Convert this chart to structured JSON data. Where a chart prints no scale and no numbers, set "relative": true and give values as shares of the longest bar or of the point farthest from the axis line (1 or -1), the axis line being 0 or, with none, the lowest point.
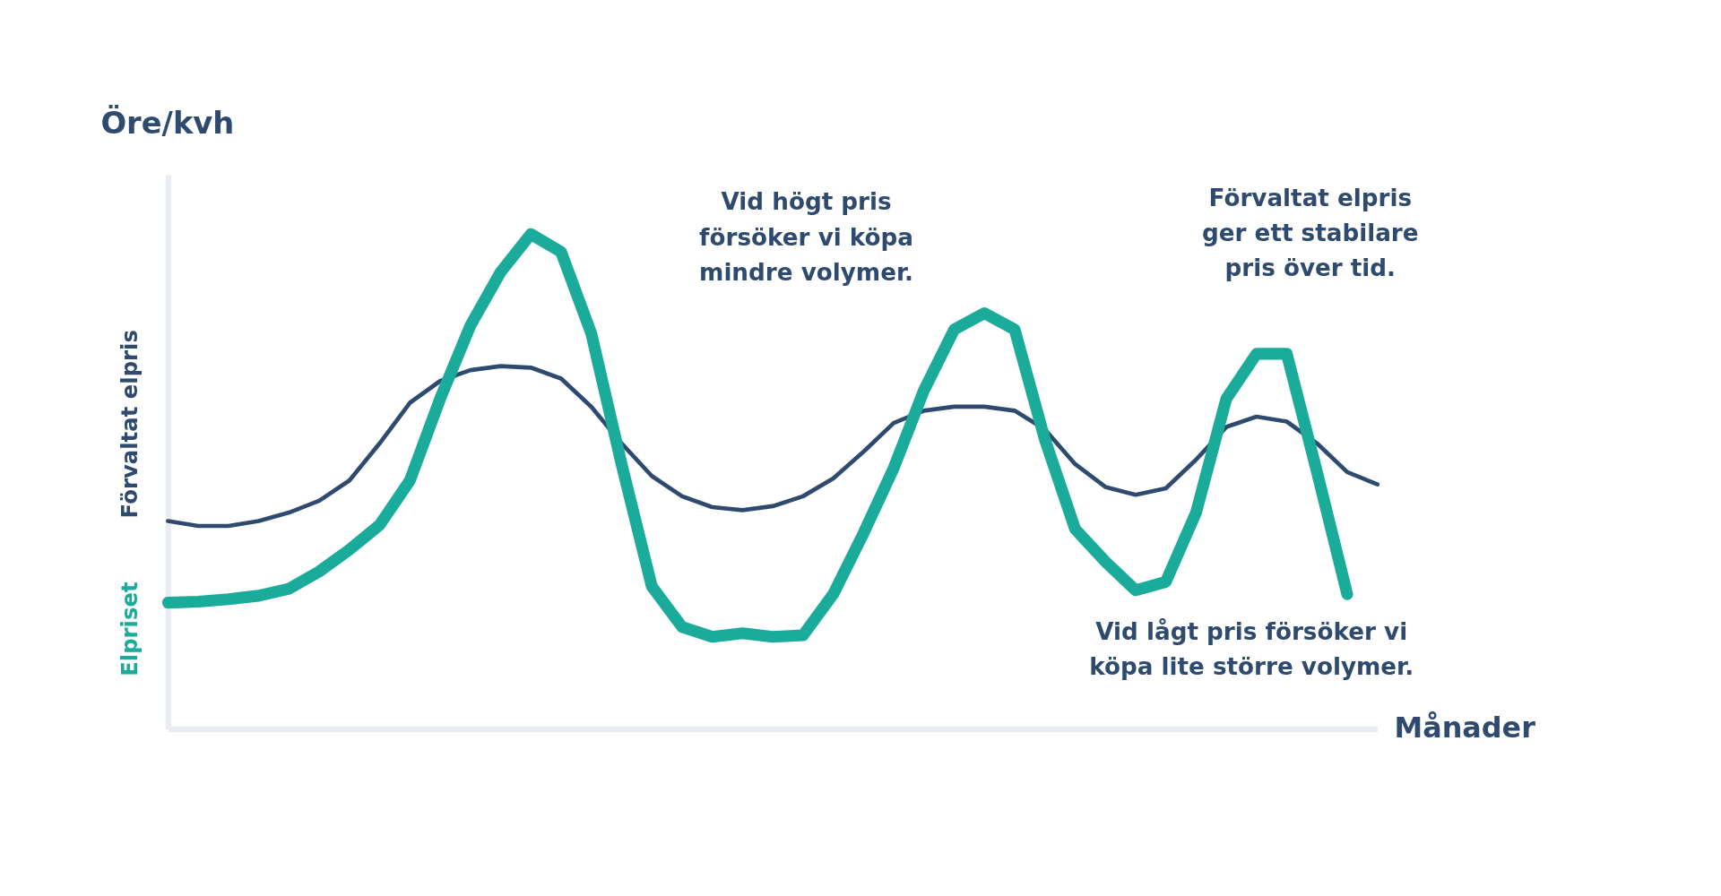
{
  "chart_data": {
    "type": "line",
    "title": "Öre/kvh",
    "xlabel": "Månader",
    "relative": true,
    "legend": false,
    "grid": false,
    "marker": "none",
    "categories": [
      null,
      null,
      null,
      null,
      null,
      null,
      null,
      null,
      null,
      null,
      null,
      null,
      null,
      null,
      null,
      null,
      null,
      null,
      null,
      null,
      null,
      null,
      null,
      null,
      null,
      null,
      null,
      null,
      null,
      null,
      null,
      null,
      null,
      null,
      null,
      null,
      null,
      null,
      null,
      null,
      null
    ],
    "series": [
      {
        "name": "Förvaltat elpris",
        "color": "#2e4a6e",
        "values": [
          0.42,
          0.41,
          0.41,
          0.42,
          0.437,
          0.461,
          0.502,
          0.577,
          0.659,
          0.703,
          0.725,
          0.733,
          0.73,
          0.708,
          0.651,
          0.577,
          0.511,
          0.47,
          0.448,
          0.442,
          0.45,
          0.47,
          0.506,
          0.56,
          0.618,
          0.643,
          0.651,
          0.651,
          0.643,
          0.605,
          0.535,
          0.489,
          0.473,
          0.486,
          0.544,
          0.61,
          0.631,
          0.621,
          0.577,
          0.519,
          0.494
        ]
      },
      {
        "name": "Elpriset",
        "color": "#1aab9b",
        "values": [
          0.255,
          0.257,
          0.262,
          0.269,
          0.283,
          0.318,
          0.362,
          0.412,
          0.502,
          0.667,
          0.815,
          0.923,
          1.0,
          0.964,
          0.799,
          0.535,
          0.288,
          0.206,
          0.186,
          0.193,
          0.186,
          0.189,
          0.272,
          0.395,
          0.527,
          0.684,
          0.807,
          0.84,
          0.807,
          0.585,
          0.404,
          0.338,
          0.28,
          0.297,
          0.437,
          0.667,
          0.758,
          0.758,
          0.519,
          0.272,
          null
        ]
      }
    ],
    "annotations": [
      "Vid högt pris\nförsöker vi köpa\nmindre volymer.",
      "Förvaltat elpris\nger ett stabilare\npris över tid.",
      "Vid lågt pris försöker vi\nköpa lite större volymer."
    ]
  }
}
